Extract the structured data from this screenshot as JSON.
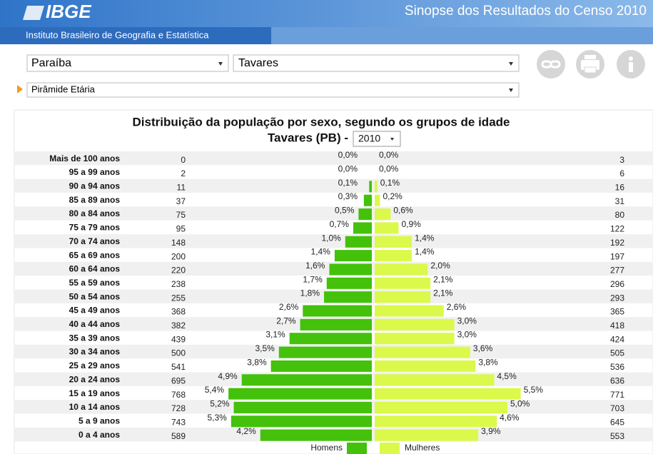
{
  "header": {
    "logo": "IBGE",
    "title": "Sinopse dos Resultados do Censo 2010",
    "institute": "Instituto Brasileiro de Geografia e Estatística"
  },
  "controls": {
    "state": "Paraíba",
    "city": "Tavares",
    "view": "Pirâmide Etária",
    "year": "2010"
  },
  "chart_data": {
    "type": "pyramid",
    "title": "Distribuição da população por sexo, segundo os grupos de idade",
    "subtitle": "Tavares (PB) -",
    "categories": [
      "Mais de 100 anos",
      "95 a 99 anos",
      "90 a 94 anos",
      "85 a 89 anos",
      "80 a 84 anos",
      "75 a 79 anos",
      "70 a 74 anos",
      "65 a 69 anos",
      "60 a 64 anos",
      "55 a 59 anos",
      "50 a 54 anos",
      "45 a 49 anos",
      "40 a 44 anos",
      "35 a 39 anos",
      "30 a 34 anos",
      "25 a 29 anos",
      "20 a 24 anos",
      "15 a 19 anos",
      "10 a 14 anos",
      "5 a 9 anos",
      "0 a 4 anos"
    ],
    "series": [
      {
        "name": "Homens",
        "color": "#43c10b",
        "values": [
          0.0,
          0.0,
          0.1,
          0.3,
          0.5,
          0.7,
          1.0,
          1.4,
          1.6,
          1.7,
          1.8,
          2.6,
          2.7,
          3.1,
          3.5,
          3.8,
          4.9,
          5.4,
          5.2,
          5.3,
          4.2
        ],
        "value_labels": [
          "0,0%",
          "0,0%",
          "0,1%",
          "0,3%",
          "0,5%",
          "0,7%",
          "1,0%",
          "1,4%",
          "1,6%",
          "1,7%",
          "1,8%",
          "2,6%",
          "2,7%",
          "3,1%",
          "3,5%",
          "3,8%",
          "4,9%",
          "5,4%",
          "5,2%",
          "5,3%",
          "4,2%"
        ],
        "counts": [
          0,
          2,
          11,
          37,
          75,
          95,
          148,
          200,
          220,
          238,
          255,
          368,
          382,
          439,
          500,
          541,
          695,
          768,
          728,
          743,
          589
        ]
      },
      {
        "name": "Mulheres",
        "color": "#dbf94a",
        "values": [
          0.0,
          0.0,
          0.1,
          0.2,
          0.6,
          0.9,
          1.4,
          1.4,
          2.0,
          2.1,
          2.1,
          2.6,
          3.0,
          3.0,
          3.6,
          3.8,
          4.5,
          5.5,
          5.0,
          4.6,
          3.9
        ],
        "value_labels": [
          "0,0%",
          "0,0%",
          "0,1%",
          "0,2%",
          "0,6%",
          "0,9%",
          "1,4%",
          "1,4%",
          "2,0%",
          "2,1%",
          "2,1%",
          "2,6%",
          "3,0%",
          "3,0%",
          "3,6%",
          "3,8%",
          "4,5%",
          "5,5%",
          "5,0%",
          "4,6%",
          "3,9%"
        ],
        "counts": [
          3,
          6,
          16,
          31,
          80,
          122,
          192,
          197,
          277,
          296,
          293,
          365,
          418,
          424,
          505,
          536,
          636,
          771,
          703,
          645,
          553
        ]
      }
    ]
  }
}
